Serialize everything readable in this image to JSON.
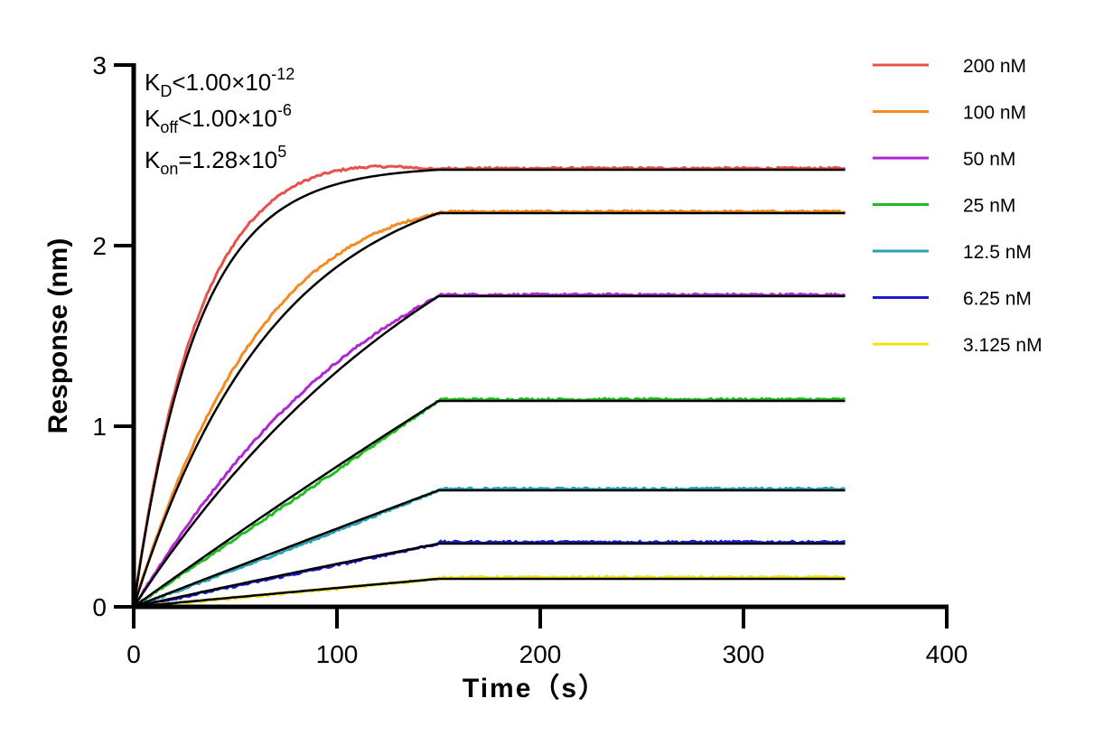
{
  "chart_data": {
    "type": "line",
    "title": "",
    "xlabel": "Time（s）",
    "ylabel": "Response (nm)",
    "xlim": [
      0,
      400
    ],
    "ylim": [
      0,
      3
    ],
    "xticks": [
      0,
      100,
      200,
      300,
      400
    ],
    "yticks": [
      0,
      1,
      2,
      3
    ],
    "xtick_labels": [
      "0",
      "100",
      "200",
      "300",
      "400"
    ],
    "ytick_labels": [
      "0",
      "1",
      "2",
      "3"
    ],
    "grid": false,
    "legend_position": "top-right",
    "association_end": 150,
    "time_end": 350,
    "fit_color": "#000000",
    "annotations": {
      "kd": {
        "main": "K",
        "sub": "D",
        "op": "<1.00×10",
        "sup": "-12"
      },
      "koff": {
        "main": "K",
        "sub": "off",
        "op": "<1.00×10",
        "sup": "-6"
      },
      "kon": {
        "main": "K",
        "sub": "on",
        "op": "=1.28×10",
        "sup": "5"
      }
    },
    "series": [
      {
        "name": "200 nM",
        "color": "#e8504a",
        "plateau": 2.42,
        "k_obs": 0.032
      },
      {
        "name": "100 nM",
        "color": "#f58a1f",
        "plateau": 2.18,
        "k_obs": 0.0145
      },
      {
        "name": "50 nM",
        "color": "#b026d4",
        "plateau": 1.72,
        "k_obs": 0.0058
      },
      {
        "name": "25 nM",
        "color": "#22bb22",
        "plateau": 1.14,
        "k_obs": 0.0009
      },
      {
        "name": "12.5 nM",
        "color": "#2aa0b4",
        "plateau": 0.645,
        "k_obs": 0.0003
      },
      {
        "name": "6.25 nM",
        "color": "#1a1ad0",
        "plateau": 0.35,
        "k_obs": 0.0008
      },
      {
        "name": "3.125 nM",
        "color": "#f2e21a",
        "plateau": 0.155,
        "k_obs": 0.0005
      }
    ]
  }
}
